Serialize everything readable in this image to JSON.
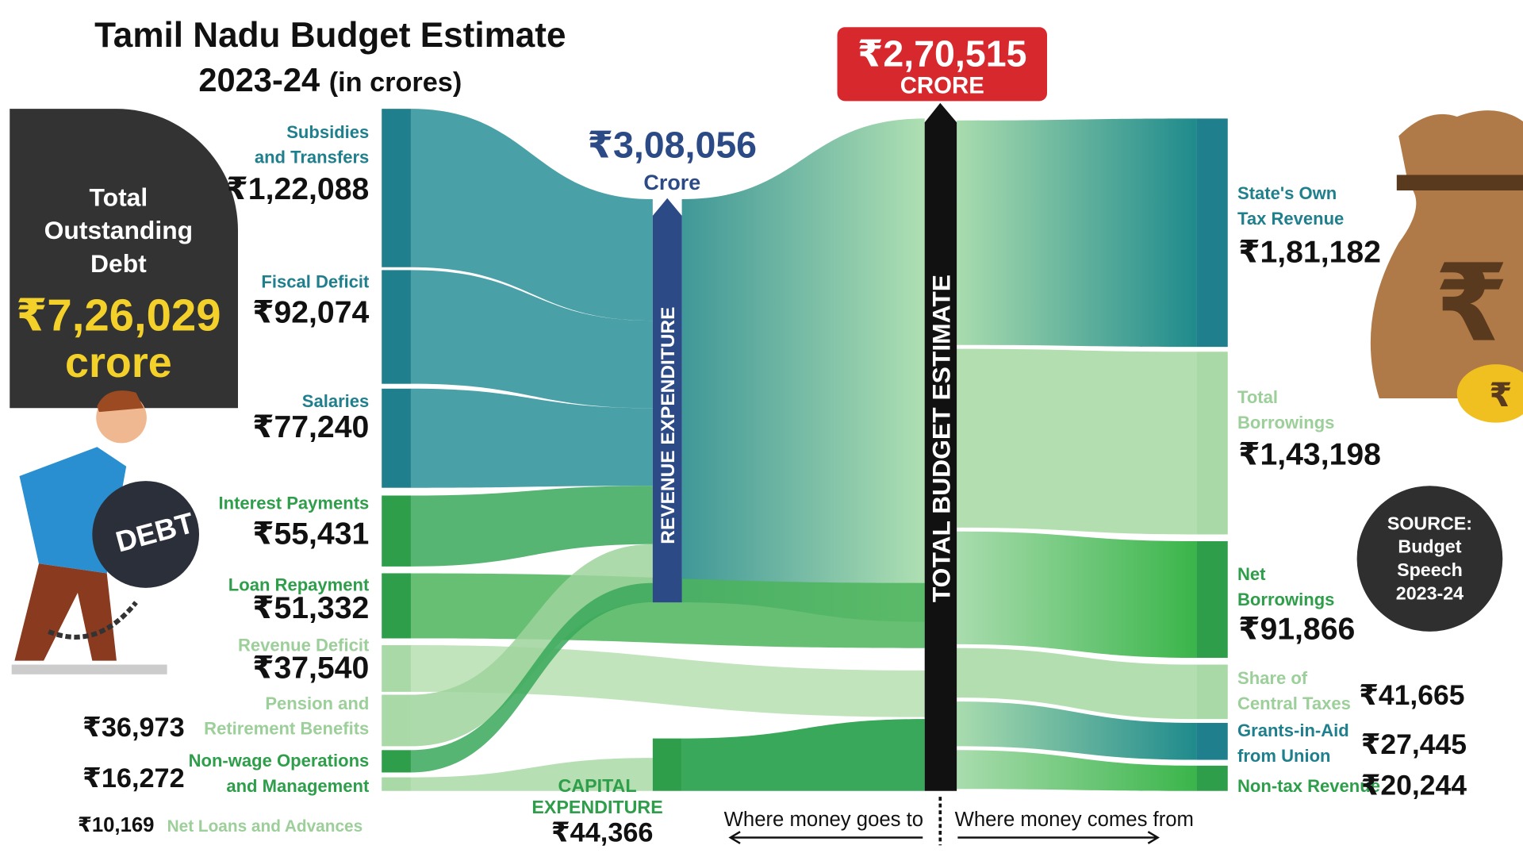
{
  "title": {
    "line1": "Tamil Nadu Budget Estimate",
    "line2": "2023-24",
    "line2_suffix": "(in crores)"
  },
  "debt": {
    "l1": "Total",
    "l2": "Outstanding",
    "l3": "Debt",
    "amount": "₹7,26,029",
    "unit": "crore",
    "ball_text": "DEBT"
  },
  "total_budget": {
    "amount": "₹2,70,515",
    "unit": "CRORE",
    "bar_label": "TOTAL BUDGET ESTIMATE"
  },
  "revenue_expenditure": {
    "amount": "₹3,08,056",
    "unit": "Crore",
    "bar_label": "REVENUE EXPENDITURE"
  },
  "capital_expenditure": {
    "l1": "CAPITAL",
    "l2": "EXPENDITURE",
    "amount": "₹44,366"
  },
  "expenditure": [
    {
      "l1": "Subsidies",
      "l2": "and Transfers",
      "amount": "₹1,22,088"
    },
    {
      "l1": "Fiscal Deficit",
      "amount": "₹92,074"
    },
    {
      "l1": "Salaries",
      "amount": "₹77,240"
    },
    {
      "l1": "Interest Payments",
      "amount": "₹55,431"
    },
    {
      "l1": "Loan Repayment",
      "amount": "₹51,332"
    },
    {
      "l1": "Revenue Deficit",
      "amount": "₹37,540"
    },
    {
      "l1": "Pension and",
      "l2": "Retirement Benefits",
      "amount": "₹36,973"
    },
    {
      "l1": "Non-wage Operations",
      "l2": "and Management",
      "amount": "₹16,272"
    },
    {
      "l1": "Net Loans and Advances",
      "amount": "₹10,169"
    }
  ],
  "receipts": [
    {
      "l1": "State's Own",
      "l2": "Tax Revenue",
      "amount": "₹1,81,182"
    },
    {
      "l1": "Total",
      "l2": "Borrowings",
      "amount": "₹1,43,198"
    },
    {
      "l1": "Net",
      "l2": "Borrowings",
      "amount": "₹91,866"
    },
    {
      "l1": "Share of",
      "l2": "Central Taxes",
      "amount": "₹41,665"
    },
    {
      "l1": "Grants-in-Aid",
      "l2": "from Union",
      "amount": "₹27,445"
    },
    {
      "l1": "Non-tax Revenue",
      "amount": "₹20,244"
    }
  ],
  "source": {
    "l1": "SOURCE:",
    "l2": "Budget",
    "l3": "Speech",
    "l4": "2023-24"
  },
  "footer": {
    "goes": "Where money goes to",
    "comes": "Where money comes from"
  },
  "colors": {
    "teal": "#1f7f8c",
    "green": "#2e9e4a",
    "light_green": "#a9d9a6",
    "dark_blue": "#2c4a86",
    "red": "#d7282e",
    "yellow": "#f3d02a",
    "dark": "#2f2f2f"
  }
}
